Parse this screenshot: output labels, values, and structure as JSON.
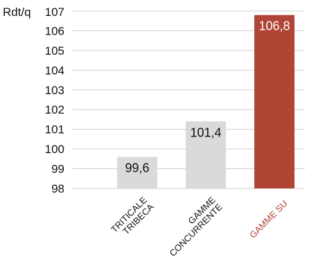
{
  "chart_data": {
    "type": "bar",
    "ylabel": "Rdt/q",
    "ylim": [
      98,
      107
    ],
    "yticks": [
      98,
      99,
      100,
      101,
      102,
      103,
      104,
      105,
      106,
      107
    ],
    "grid": true,
    "categories": [
      [
        "TRITICALE",
        "TRIBECA"
      ],
      [
        "GAMME",
        "CONCURRENTE"
      ],
      [
        "GAMME SU"
      ]
    ],
    "values": [
      99.6,
      101.4,
      106.8
    ],
    "data_labels": [
      "99,6",
      "101,4",
      "106,8"
    ],
    "bar_colors": [
      "#dadada",
      "#dadada",
      "#b04535"
    ],
    "data_label_colors": [
      "#111111",
      "#111111",
      "#ffffff"
    ],
    "category_label_colors": [
      "#111111",
      "#111111",
      "#b04535"
    ],
    "grid_color": "#cfcfcf"
  }
}
